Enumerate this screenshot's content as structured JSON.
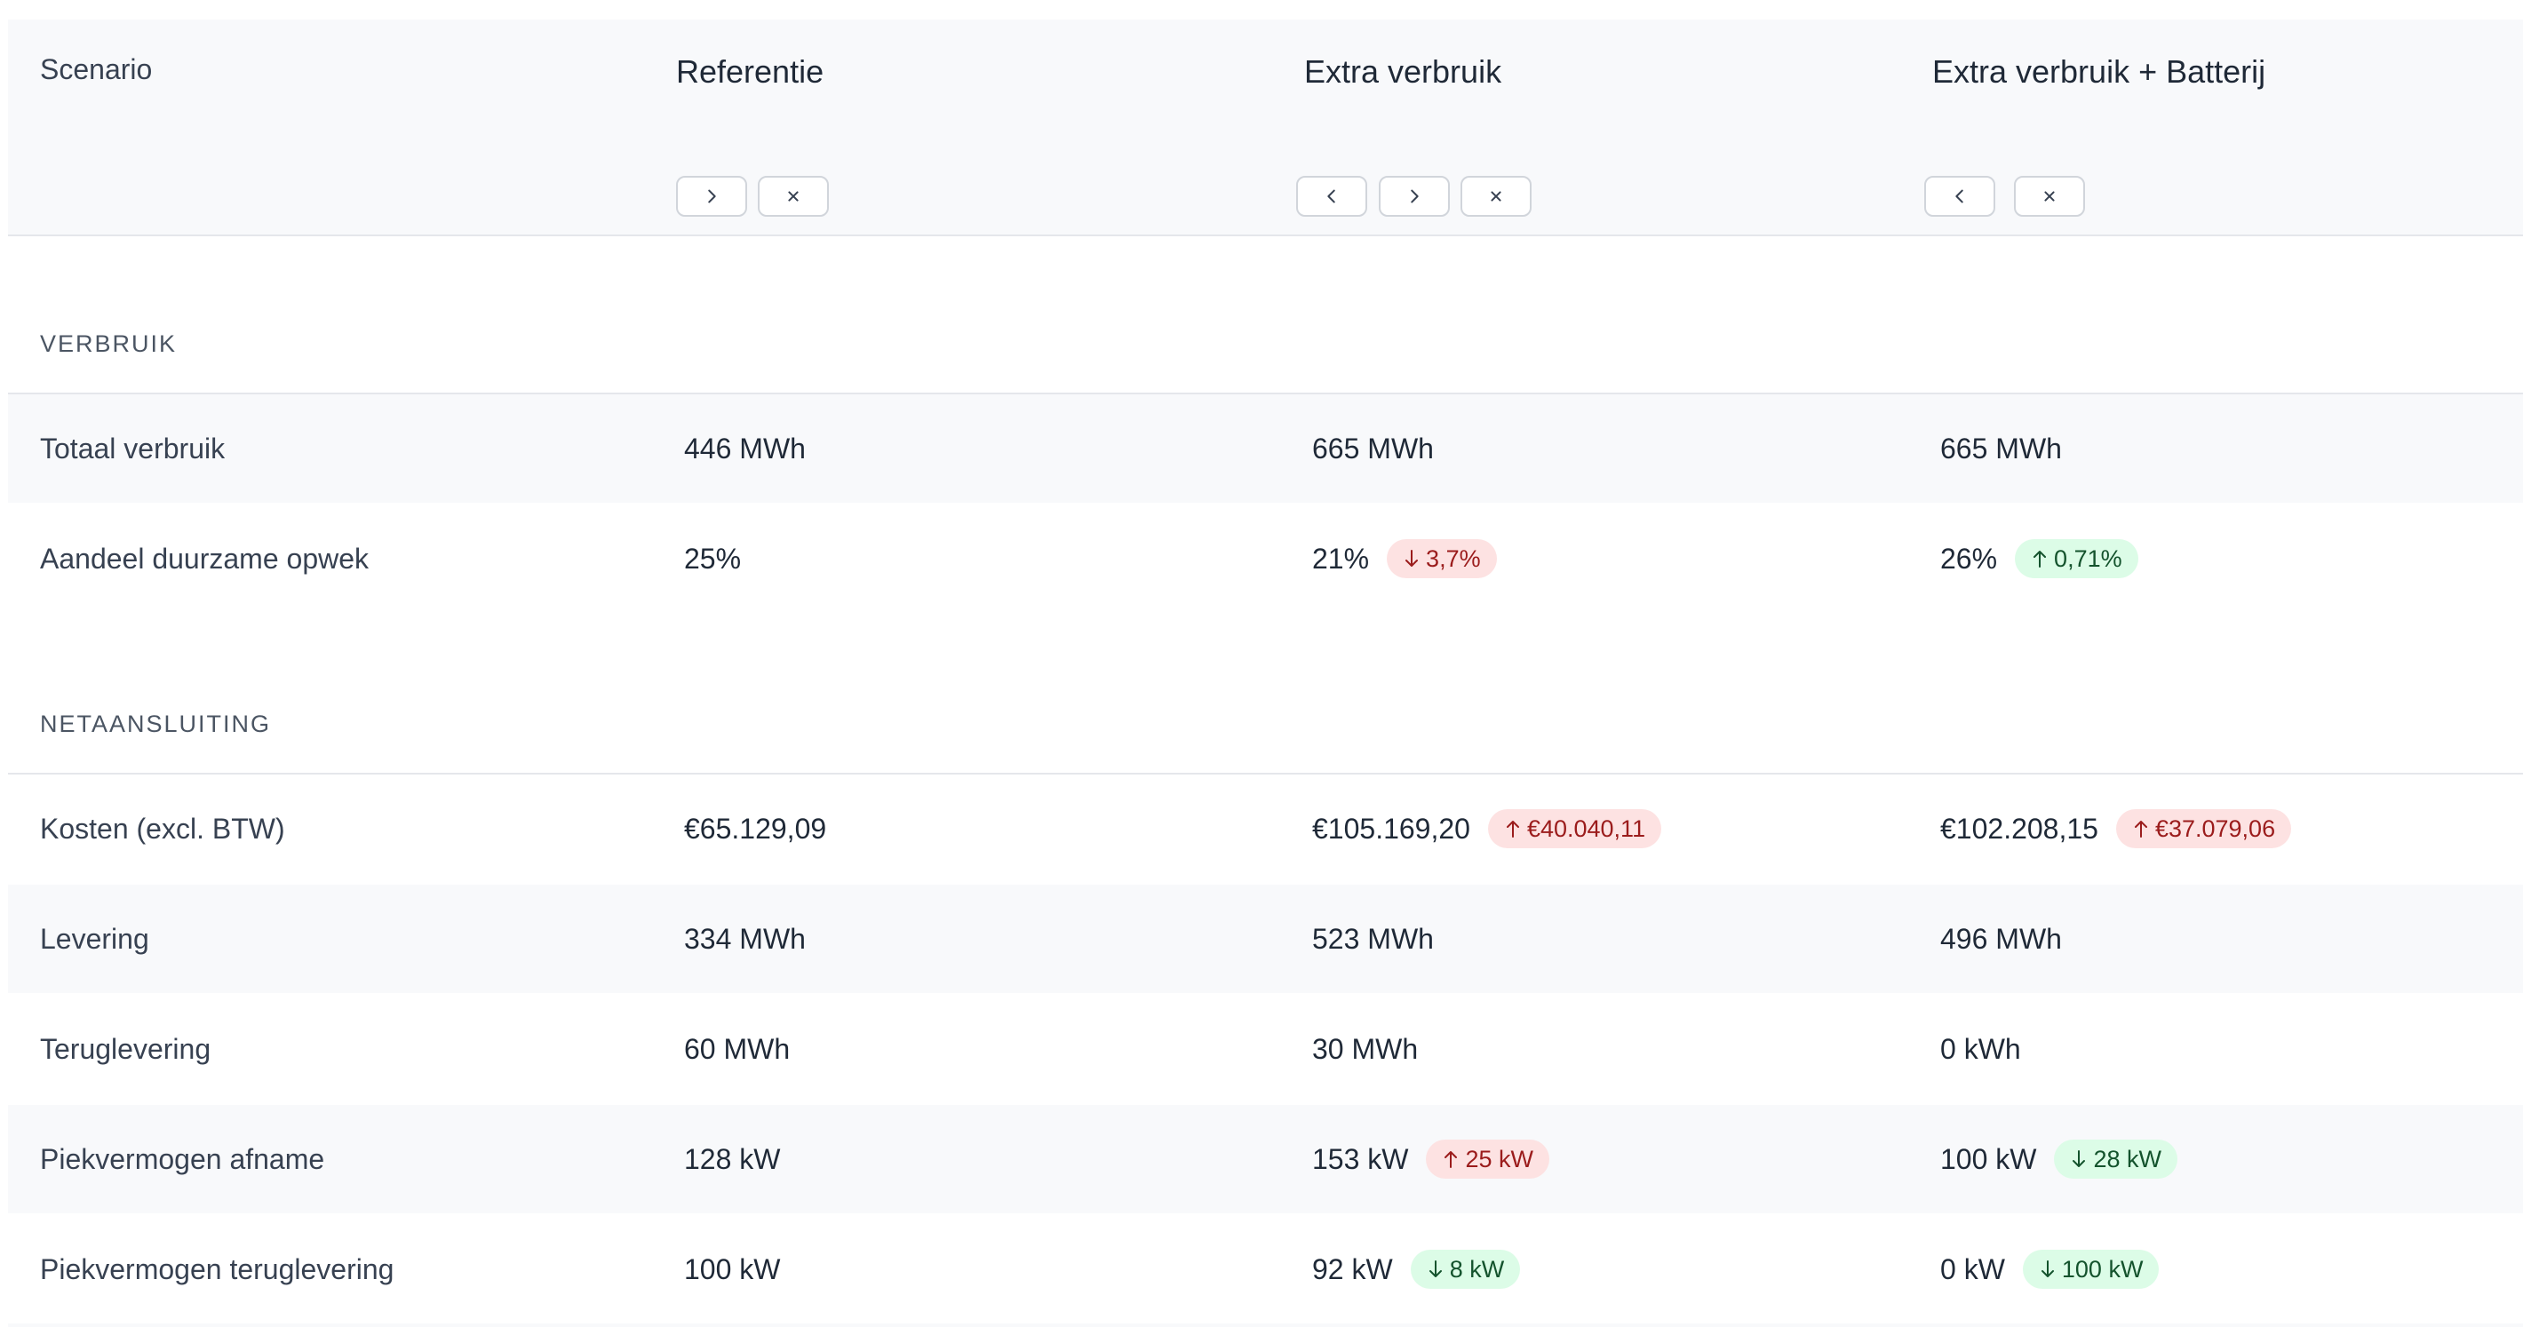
{
  "header": {
    "scenario_label": "Scenario",
    "columns": [
      {
        "title": "Referentie"
      },
      {
        "title": "Extra verbruik"
      },
      {
        "title": "Extra verbruik + Batterij"
      }
    ]
  },
  "icons": {
    "prev": "chevron-left-icon",
    "next": "chevron-right-icon",
    "remove": "close-icon",
    "increase": "arrow-up-icon",
    "decrease": "arrow-down-icon"
  },
  "colors": {
    "negative_badge_bg": "#fde2e2",
    "negative_badge_text": "#9b1c1c",
    "positive_badge_bg": "#dcfce7",
    "positive_badge_text": "#14532d"
  },
  "sections": [
    {
      "label": "VERBRUIK",
      "rows": [
        {
          "label": "Totaal verbruik",
          "values": [
            "446 MWh",
            "665 MWh",
            "665 MWh"
          ],
          "badges": [
            null,
            null,
            null
          ]
        },
        {
          "label": "Aandeel duurzame opwek",
          "values": [
            "25%",
            "21%",
            "26%"
          ],
          "badges": [
            null,
            {
              "text": "3,7%",
              "dir": "down",
              "tone": "red"
            },
            {
              "text": "0,71%",
              "dir": "up",
              "tone": "green"
            }
          ]
        }
      ]
    },
    {
      "label": "NETAANSLUITING",
      "rows": [
        {
          "label": "Kosten (excl. BTW)",
          "values": [
            "€65.129,09",
            "€105.169,20",
            "€102.208,15"
          ],
          "badges": [
            null,
            {
              "text": "€40.040,11",
              "dir": "up",
              "tone": "red"
            },
            {
              "text": "€37.079,06",
              "dir": "up",
              "tone": "red"
            }
          ]
        },
        {
          "label": "Levering",
          "values": [
            "334 MWh",
            "523 MWh",
            "496 MWh"
          ],
          "badges": [
            null,
            null,
            null
          ]
        },
        {
          "label": "Teruglevering",
          "values": [
            "60 MWh",
            "30 MWh",
            "0 kWh"
          ],
          "badges": [
            null,
            null,
            null
          ]
        },
        {
          "label": "Piekvermogen afname",
          "values": [
            "128 kW",
            "153 kW",
            "100 kW"
          ],
          "badges": [
            null,
            {
              "text": "25 kW",
              "dir": "up",
              "tone": "red"
            },
            {
              "text": "28 kW",
              "dir": "down",
              "tone": "green"
            }
          ]
        },
        {
          "label": "Piekvermogen teruglevering",
          "values": [
            "100 kW",
            "92 kW",
            "0 kW"
          ],
          "badges": [
            null,
            {
              "text": "8 kW",
              "dir": "down",
              "tone": "green"
            },
            {
              "text": "100 kW",
              "dir": "down",
              "tone": "green"
            }
          ]
        }
      ]
    }
  ]
}
